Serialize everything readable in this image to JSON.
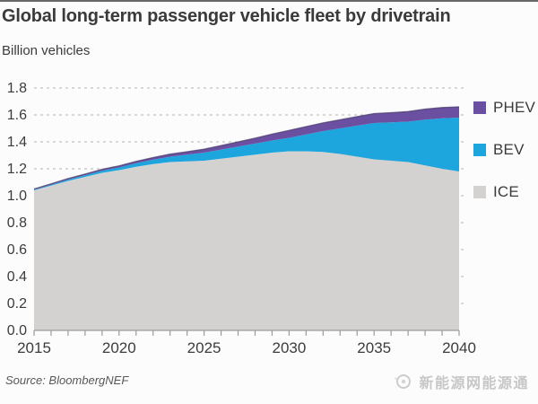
{
  "title": "Global long-term passenger vehicle fleet by drivetrain",
  "y_axis_unit": "Billion vehicles",
  "source": "Source: BloombergNEF",
  "watermark": "新能源网能源通",
  "legend": [
    {
      "label": "PHEV",
      "color": "#6b4fa1"
    },
    {
      "label": "BEV",
      "color": "#1ca6dd"
    },
    {
      "label": "ICE",
      "color": "#d3d2d0"
    }
  ],
  "chart_data": {
    "type": "area",
    "stacked": true,
    "title": "Global long-term passenger vehicle fleet by drivetrain",
    "xlabel": "",
    "ylabel": "Billion vehicles",
    "x": [
      2015,
      2016,
      2017,
      2018,
      2019,
      2020,
      2021,
      2022,
      2023,
      2024,
      2025,
      2026,
      2027,
      2028,
      2029,
      2030,
      2031,
      2032,
      2033,
      2034,
      2035,
      2036,
      2037,
      2038,
      2039,
      2040
    ],
    "series": [
      {
        "name": "ICE",
        "color": "#d3d2d0",
        "values": [
          1.04,
          1.075,
          1.11,
          1.14,
          1.17,
          1.19,
          1.215,
          1.235,
          1.25,
          1.255,
          1.26,
          1.275,
          1.29,
          1.305,
          1.32,
          1.33,
          1.33,
          1.325,
          1.31,
          1.29,
          1.27,
          1.26,
          1.25,
          1.225,
          1.2,
          1.18
        ]
      },
      {
        "name": "BEV",
        "color": "#1ca6dd",
        "values": [
          0.005,
          0.007,
          0.01,
          0.013,
          0.016,
          0.02,
          0.026,
          0.032,
          0.04,
          0.05,
          0.06,
          0.068,
          0.075,
          0.082,
          0.09,
          0.1,
          0.125,
          0.155,
          0.19,
          0.23,
          0.27,
          0.285,
          0.3,
          0.34,
          0.375,
          0.4
        ]
      },
      {
        "name": "PHEV",
        "color": "#6b4fa1",
        "values": [
          0.005,
          0.006,
          0.007,
          0.008,
          0.01,
          0.012,
          0.014,
          0.016,
          0.019,
          0.022,
          0.026,
          0.03,
          0.035,
          0.04,
          0.047,
          0.055,
          0.058,
          0.061,
          0.064,
          0.067,
          0.07,
          0.072,
          0.075,
          0.078,
          0.08,
          0.08
        ]
      }
    ],
    "xticks": [
      2015,
      2020,
      2025,
      2030,
      2035,
      2040
    ],
    "yticks": [
      0.0,
      0.2,
      0.4,
      0.6,
      0.8,
      1.0,
      1.2,
      1.4,
      1.6,
      1.8
    ],
    "ylim": [
      0,
      1.8
    ],
    "xlim": [
      2015,
      2040
    ],
    "grid": "horizontal-dashed",
    "legend_position": "right",
    "top_edge_color": "#4a3e70"
  }
}
